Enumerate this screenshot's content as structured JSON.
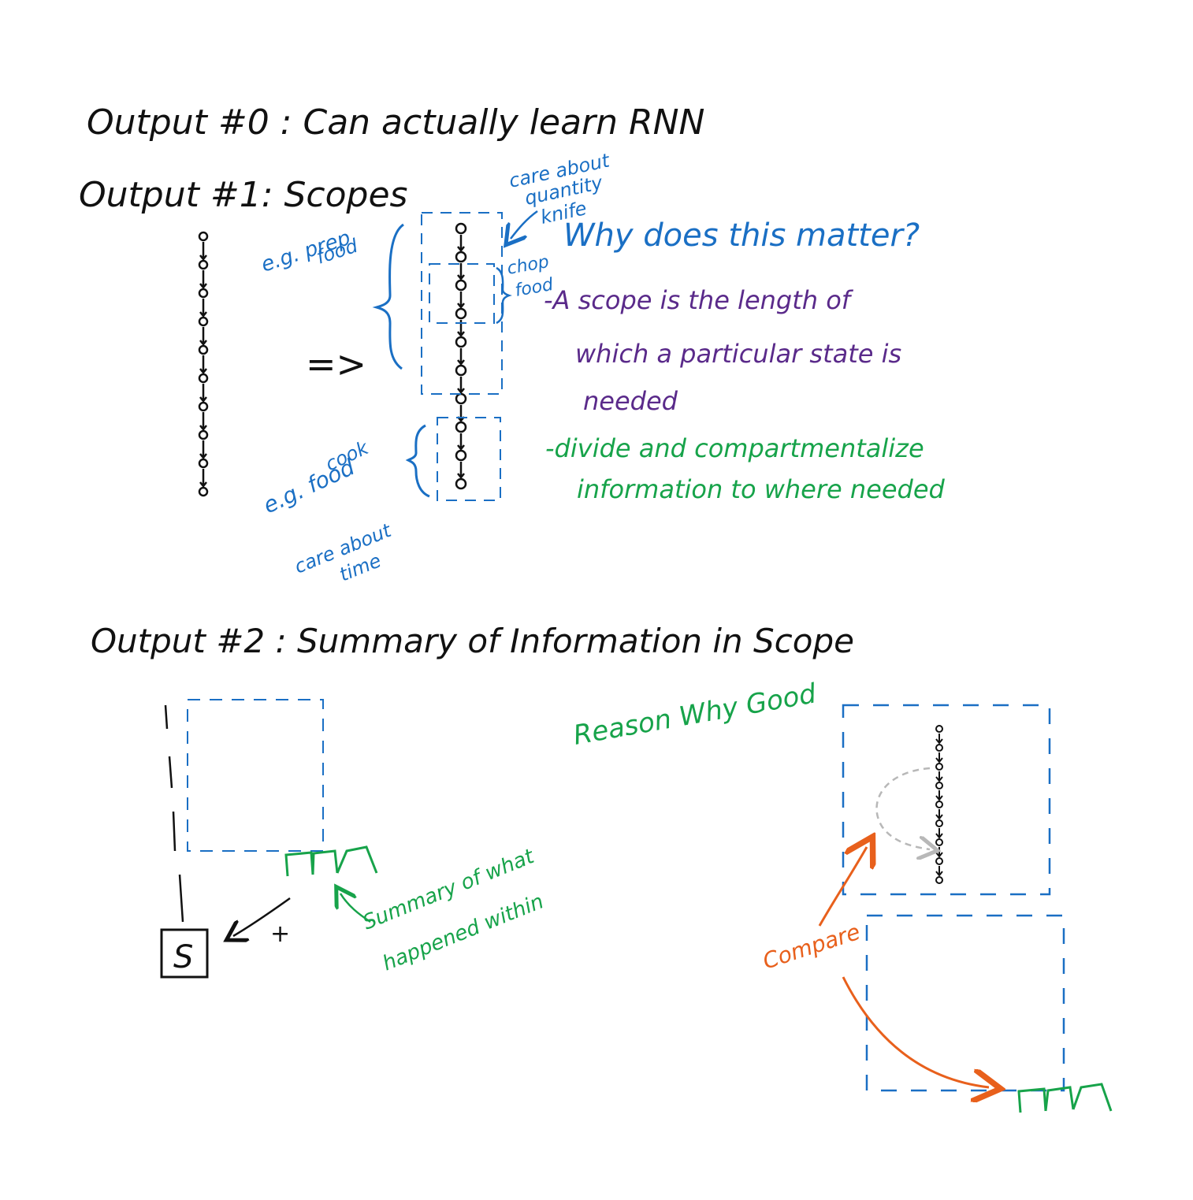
{
  "colors": {
    "ink": "#111111",
    "blue": "#1a6fc4",
    "purple": "#5a2a8a",
    "green": "#17a34a",
    "orange": "#e8601c",
    "gray": "#b8b8b8"
  },
  "headings": {
    "output0": "Output #0 : Can actually learn RNN",
    "output1": "Output #1:  Scopes",
    "output2": "Output #2 : Summary of Information in Scope"
  },
  "scopes": {
    "prep_line1": "e.g. prep",
    "prep_line2": "food",
    "care_quantity_1": "care about",
    "care_quantity_2": "quantity",
    "knife": "knife",
    "chop_1": "chop",
    "chop_2": "food",
    "cook_1": "cook",
    "cook_2": "e.g. food",
    "care_time_1": "care about",
    "care_time_2": "time",
    "arrow": "=>"
  },
  "why": {
    "question": "Why does this matter?",
    "line1": "-A scope is the length of",
    "line2": "which a particular state is",
    "line3": "needed",
    "line4": "-divide and compartmentalize",
    "line5": "information to where needed"
  },
  "summary": {
    "summary_1": "Summary of what",
    "summary_2": "happened within",
    "s_box": "S",
    "plus": "+",
    "reason": "Reason Why Good",
    "compare": "Compare"
  }
}
